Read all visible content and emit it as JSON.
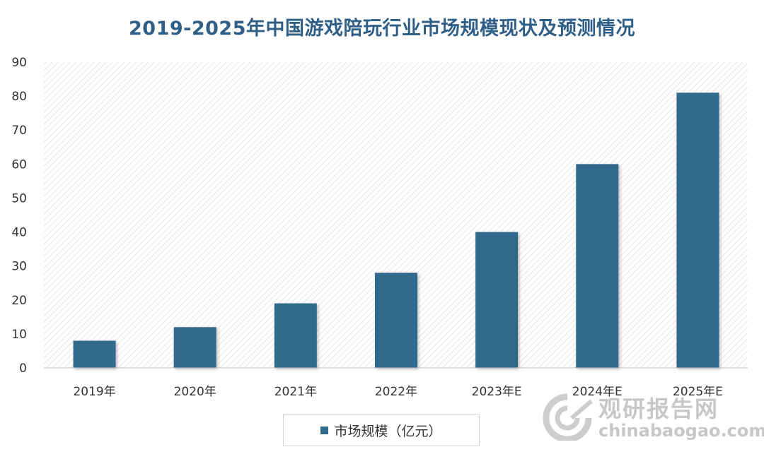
{
  "title": "2019-2025年中国游戏陪玩行业市场规模现状及预测情况",
  "chart_data": {
    "type": "bar",
    "title": "2019-2025年中国游戏陪玩行业市场规模现状及预测情况",
    "categories": [
      "2019年",
      "2020年",
      "2021年",
      "2022年",
      "2023年E",
      "2024年E",
      "2025年E"
    ],
    "series": [
      {
        "name": "市场规模（亿元）",
        "values": [
          8,
          12,
          19,
          28,
          40,
          60,
          81
        ],
        "color": "#336a8e"
      }
    ],
    "xlabel": "",
    "ylabel": "",
    "ylim": [
      0,
      90
    ],
    "yticks": [
      0,
      10,
      20,
      30,
      40,
      50,
      60,
      70,
      80,
      90
    ],
    "grid": false,
    "plot_background": "diagonal-hatch",
    "legend_position": "bottom"
  },
  "legend": {
    "label": "市场规模（亿元）"
  },
  "watermark": {
    "cn": "观研报告网",
    "en": "chinabaogao.com"
  }
}
